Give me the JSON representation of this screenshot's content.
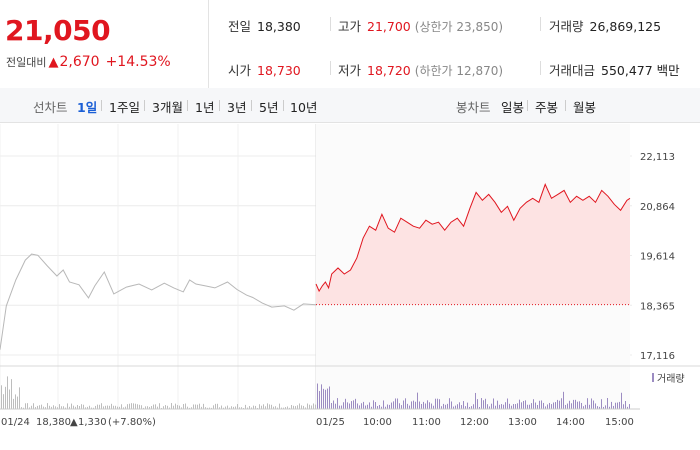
{
  "summary": {
    "price": "21,050",
    "change_label": "전일대비",
    "change_icon": "up-triangle-icon",
    "change_value": "2,670",
    "change_pct": "+14.53%"
  },
  "stats": {
    "prev_close_label": "전일",
    "prev_close": "18,380",
    "high_label": "고가",
    "high": "21,700",
    "upper_limit_label": "(상한가 23,850)",
    "volume_label": "거래량",
    "volume": "26,869,125",
    "open_label": "시가",
    "open": "18,730",
    "low_label": "저가",
    "low": "18,720",
    "lower_limit_label": "(하한가 12,870)",
    "amount_label": "거래대금",
    "amount": "550,477 백만"
  },
  "toolbar": {
    "line_label": "선차트",
    "ranges": [
      "1일",
      "1주일",
      "3개월",
      "1년",
      "3년",
      "5년",
      "10년"
    ],
    "active_range": "1일",
    "candle_label": "봉차트",
    "candles": [
      "일봉",
      "주봉",
      "월봉"
    ]
  },
  "chart_data": {
    "type": "line",
    "y_ticks": [
      "22,113",
      "20,864",
      "19,614",
      "18,365",
      "17,116"
    ],
    "ylim": [
      17116,
      22113
    ],
    "reference_line": 18380,
    "x_ticks": [
      "01/24",
      "01/25",
      "10:00",
      "11:00",
      "12:00",
      "13:00",
      "14:00",
      "15:00"
    ],
    "prev_day_note": {
      "date": "01/24",
      "price": "18,380",
      "change": "1,330",
      "pct": "(+7.80%)"
    },
    "colors": {
      "today": "#e0161f",
      "prev": "#b8b8b8",
      "fill": "#fde3e3",
      "volume_today": "#9c8cc2",
      "volume_prev": "#bdbdbd"
    },
    "volume_legend": "거래량",
    "series": [
      {
        "x": [
          0,
          0.02,
          0.05,
          0.08,
          0.1,
          0.12,
          0.15,
          0.18,
          0.2,
          0.22,
          0.25,
          0.28,
          0.3,
          0.33,
          0.36,
          0.4,
          0.44,
          0.48,
          0.52,
          0.55,
          0.58,
          0.6,
          0.62,
          0.65,
          0.68,
          0.72,
          0.75,
          0.78,
          0.8,
          0.83,
          0.86,
          0.9,
          0.93,
          0.96,
          1.0
        ],
        "values": [
          17250,
          18350,
          19000,
          19500,
          19650,
          19620,
          19350,
          19100,
          19250,
          18950,
          18880,
          18550,
          18850,
          19200,
          18650,
          18820,
          18900,
          18750,
          18920,
          18800,
          18700,
          19000,
          18900,
          18850,
          18800,
          18950,
          18760,
          18620,
          18560,
          18420,
          18320,
          18350,
          18240,
          18400,
          18380
        ]
      },
      {
        "x": [
          0,
          0.01,
          0.02,
          0.03,
          0.04,
          0.05,
          0.07,
          0.09,
          0.11,
          0.13,
          0.15,
          0.17,
          0.19,
          0.21,
          0.23,
          0.25,
          0.27,
          0.29,
          0.31,
          0.33,
          0.35,
          0.37,
          0.39,
          0.41,
          0.43,
          0.45,
          0.47,
          0.49,
          0.51,
          0.53,
          0.55,
          0.57,
          0.59,
          0.61,
          0.63,
          0.65,
          0.67,
          0.69,
          0.71,
          0.73,
          0.75,
          0.77,
          0.79,
          0.81,
          0.83,
          0.85,
          0.87,
          0.89,
          0.91,
          0.93,
          0.95,
          0.97,
          0.99,
          1.0
        ],
        "values": [
          18900,
          18720,
          18850,
          18950,
          18800,
          19150,
          19300,
          19150,
          19250,
          19550,
          20050,
          20350,
          20250,
          20650,
          20300,
          20200,
          20550,
          20450,
          20350,
          20300,
          20500,
          20400,
          20450,
          20250,
          20450,
          20550,
          20350,
          20800,
          21200,
          21000,
          21150,
          20950,
          20700,
          20850,
          20500,
          20800,
          20950,
          21050,
          20950,
          21400,
          21050,
          21150,
          21250,
          20950,
          21100,
          21000,
          21100,
          20950,
          21250,
          21100,
          20900,
          20750,
          21000,
          21050
        ]
      }
    ]
  }
}
